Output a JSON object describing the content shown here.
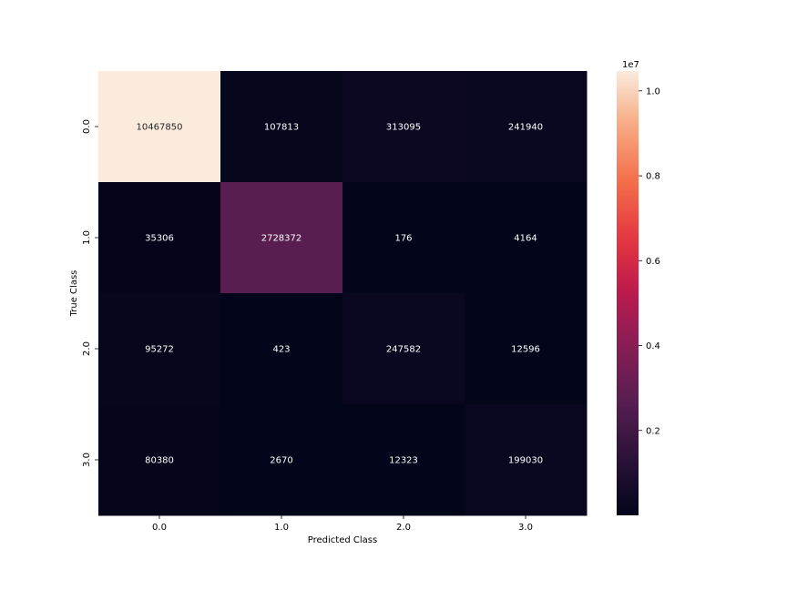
{
  "chart_data": {
    "type": "heatmap",
    "title": "",
    "xlabel": "Predicted Class",
    "ylabel": "True Class",
    "x_categories": [
      "0.0",
      "1.0",
      "2.0",
      "3.0"
    ],
    "y_categories": [
      "0.0",
      "1.0",
      "2.0",
      "3.0"
    ],
    "values": [
      [
        10467850,
        107813,
        313095,
        241940
      ],
      [
        35306,
        2728372,
        176,
        4164
      ],
      [
        95272,
        423,
        247582,
        12596
      ],
      [
        80380,
        2670,
        12323,
        199030
      ]
    ],
    "cell_labels": [
      [
        "10467850",
        "107813",
        "313095",
        "241940"
      ],
      [
        "35306",
        "2728372",
        "176",
        "4164"
      ],
      [
        "95272",
        "423",
        "247582",
        "12596"
      ],
      [
        "80380",
        "2670",
        "12323",
        "199030"
      ]
    ],
    "colorbar": {
      "range": [
        176,
        10467850
      ],
      "ticks": [
        0.2,
        0.4,
        0.6,
        0.8,
        1.0
      ],
      "offset_label": "1e7",
      "colormap": "rocket"
    },
    "grid": false
  }
}
